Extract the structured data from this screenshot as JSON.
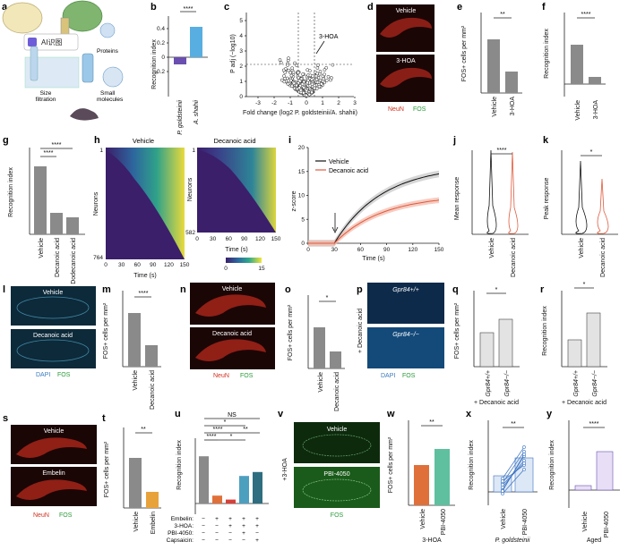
{
  "panel_labels": [
    "a",
    "b",
    "c",
    "d",
    "e",
    "f",
    "g",
    "h",
    "i",
    "j",
    "k",
    "l",
    "m",
    "n",
    "o",
    "p",
    "q",
    "r",
    "s",
    "t",
    "u",
    "v",
    "w",
    "x",
    "y"
  ],
  "panel_a": {
    "box_label": "AI识图",
    "proteins": "Proteins",
    "size_filtration": "Size\nfiltration",
    "small_molecules": "Small\nmolecules"
  },
  "charts": {
    "b": {
      "type": "bar",
      "ylabel": "Recognition index",
      "yticks": [
        "-0.2",
        "0",
        "0.2",
        "0.4"
      ],
      "categories": [
        "P. goldsteinii",
        "A. shahii"
      ],
      "values": [
        -0.05,
        0.25
      ],
      "sig": "****",
      "colors": [
        "#6a4fb0",
        "#58aee0"
      ]
    },
    "c": {
      "type": "scatter",
      "ylabel": "P adj (−log10)",
      "xlabel": "Fold change (log2 P. goldsteinii/A. shahii)",
      "xticks": [
        "-3",
        "-2",
        "-1",
        "0",
        "1",
        "2",
        "3"
      ],
      "yticks": [
        "0",
        "1",
        "2",
        "3",
        "4",
        "5"
      ],
      "annotation": "3-HOA"
    },
    "d": {
      "labels": [
        "Vehicle",
        "3-HOA"
      ],
      "legend": [
        "NeuN",
        "FOS"
      ]
    },
    "e": {
      "type": "bar",
      "ylabel": "FOS+ cells per mm²",
      "yticks": [
        "0",
        "100",
        "200",
        "300",
        "400",
        "500",
        "600"
      ],
      "categories": [
        "Vehicle",
        "3-HOA"
      ],
      "values": [
        400,
        160
      ],
      "sig": "**"
    },
    "f": {
      "type": "bar",
      "ylabel": "Recognition index",
      "yticks": [
        "-0.1",
        "0",
        "0.1",
        "0.2",
        "0.3",
        "0.4"
      ],
      "categories": [
        "Vehicle",
        "3-HOA"
      ],
      "values": [
        0.21,
        0.04
      ],
      "sig": "****"
    },
    "g": {
      "type": "bar",
      "ylabel": "Recognition index",
      "yticks": [
        "0",
        "0.1",
        "0.2",
        "0.3"
      ],
      "categories": [
        "Vehicle",
        "Decanoic acid",
        "Dodecanoic acid"
      ],
      "values": [
        0.24,
        0.08,
        0.06
      ],
      "sig": [
        "****",
        "****"
      ]
    },
    "h": {
      "titles": [
        "Vehicle",
        "Decanoic acid"
      ],
      "ylabel": "Neurons",
      "xlabel": "Time (s)",
      "xticks": [
        "0",
        "30",
        "60",
        "90",
        "120",
        "150"
      ],
      "left_rows": [
        "1",
        "764"
      ],
      "right_rows": [
        "1",
        "582"
      ],
      "colorbar": [
        "0",
        "15"
      ]
    },
    "i": {
      "type": "line",
      "ylabel": "z-score",
      "xlabel": "Time (s)",
      "xticks": [
        "0",
        "30",
        "60",
        "90",
        "120",
        "150"
      ],
      "yticks": [
        "0",
        "5",
        "10",
        "15",
        "20"
      ],
      "series": [
        {
          "name": "Vehicle",
          "color": "#111111",
          "end": 14.5
        },
        {
          "name": "Decanoic acid",
          "color": "#e05a3c",
          "end": 9
        }
      ]
    },
    "j": {
      "type": "violin",
      "ylabel": "Mean response",
      "yticks": [
        "0",
        "25",
        "50",
        "75",
        "100",
        "125"
      ],
      "categories": [
        "Vehicle",
        "Decanoic acid"
      ],
      "sig": "****"
    },
    "k": {
      "type": "violin",
      "ylabel": "Peak response",
      "yticks": [
        "0",
        "50",
        "100",
        "150"
      ],
      "categories": [
        "Vehicle",
        "Decanoic acid"
      ],
      "sig": "*"
    },
    "l": {
      "labels": [
        "Vehicle",
        "Decanoic acid"
      ],
      "legend": [
        "DAPI",
        "FOS"
      ]
    },
    "m": {
      "type": "bar",
      "ylabel": "FOS+ cells per mm²",
      "yticks": [
        "0",
        "20",
        "40",
        "60",
        "80"
      ],
      "categories": [
        "Vehicle",
        "Decanoic acid"
      ],
      "values": [
        58,
        22
      ],
      "sig": "****"
    },
    "n": {
      "labels": [
        "Vehicle",
        "Decanoic acid"
      ],
      "legend": [
        "NeuN",
        "FOS"
      ]
    },
    "o": {
      "type": "bar",
      "ylabel": "FOS+ cells per mm²",
      "yticks": [
        "0",
        "200",
        "400",
        "600"
      ],
      "categories": [
        "Vehicle",
        "Decanoic acid"
      ],
      "values": [
        350,
        150
      ],
      "sig": "*"
    },
    "p": {
      "labels": [
        "Gpr84+/+",
        "Gpr84−/−"
      ],
      "side_label": "+ Decanoic acid",
      "legend": [
        "DAPI",
        "FOS"
      ]
    },
    "q": {
      "type": "bar",
      "ylabel": "FOS+ cells per mm²",
      "yticks": [
        "0",
        "100",
        "200",
        "300"
      ],
      "categories": [
        "Gpr84+/+",
        "Gpr84−/−"
      ],
      "values": [
        130,
        180
      ],
      "sig": "*",
      "footer": "+ Decanoic acid"
    },
    "r": {
      "type": "bar",
      "ylabel": "Recognition index",
      "yticks": [
        "0",
        "0.1",
        "0.2",
        "0.3"
      ],
      "categories": [
        "Gpr84+/+",
        "Gpr84−/−"
      ],
      "values": [
        0.08,
        0.19
      ],
      "sig": "*",
      "footer": "+ Decanoic acid"
    },
    "s": {
      "labels": [
        "Vehicle",
        "Embelin"
      ],
      "legend": [
        "NeuN",
        "FOS"
      ]
    },
    "t": {
      "type": "bar",
      "ylabel": "FOS+ cells per mm²",
      "yticks": [
        "0",
        "100",
        "200",
        "300"
      ],
      "categories": [
        "Vehicle",
        "Embelin"
      ],
      "values": [
        185,
        60
      ],
      "sig": "**"
    },
    "u": {
      "type": "bar",
      "ylabel": "Recognition index",
      "yticks": [
        "-0.1",
        "0",
        "0.1",
        "0.2",
        "0.3"
      ],
      "values": [
        0.24,
        0.04,
        0.02,
        0.14,
        0.16
      ],
      "rows": [
        {
          "name": "Embelin:",
          "marks": [
            "−",
            "+",
            "+",
            "+",
            "+"
          ]
        },
        {
          "name": "3-HOA:",
          "marks": [
            "−",
            "−",
            "+",
            "+",
            "+"
          ]
        },
        {
          "name": "PBI-4050:",
          "marks": [
            "−",
            "−",
            "−",
            "+",
            "−"
          ]
        },
        {
          "name": "Capsaicin:",
          "marks": [
            "−",
            "−",
            "−",
            "−",
            "+"
          ]
        }
      ],
      "sig": [
        "NS",
        "*",
        "****",
        "****",
        "**",
        "*"
      ],
      "colors": [
        "#8a8a8a",
        "#e0703a",
        "#d8403a",
        "#4d9fc0",
        "#2e6e80"
      ]
    },
    "v": {
      "labels": [
        "Vehicle",
        "PBI-4050"
      ],
      "side_label": "+3-HOA",
      "legend": [
        "FOS"
      ]
    },
    "w": {
      "type": "bar",
      "ylabel": "FOS+ cells per mm²",
      "yticks": [
        "0",
        "50",
        "100",
        "150",
        "200",
        "250"
      ],
      "categories": [
        "Vehicle",
        "PBI-4050"
      ],
      "values": [
        125,
        175
      ],
      "sig": "**",
      "footer": "3-HOA",
      "colors": [
        "#e0703a",
        "#5fc0a0"
      ]
    },
    "x": {
      "type": "paired",
      "ylabel": "Recognition index",
      "yticks": [
        "-0.1",
        "0",
        "0.1",
        "0.2",
        "0.3"
      ],
      "categories": [
        "Vehicle",
        "PBI-4050"
      ],
      "values": [
        0.06,
        0.14
      ],
      "sig": "**",
      "footer": "P. goldsteinii"
    },
    "y": {
      "type": "bar",
      "ylabel": "Recognition index",
      "yticks": [
        "-0.1",
        "0",
        "0.1",
        "0.2"
      ],
      "categories": [
        "Vehicle",
        "PBI-4050"
      ],
      "values": [
        0.01,
        0.13
      ],
      "sig": "****",
      "footer": "Aged"
    }
  }
}
